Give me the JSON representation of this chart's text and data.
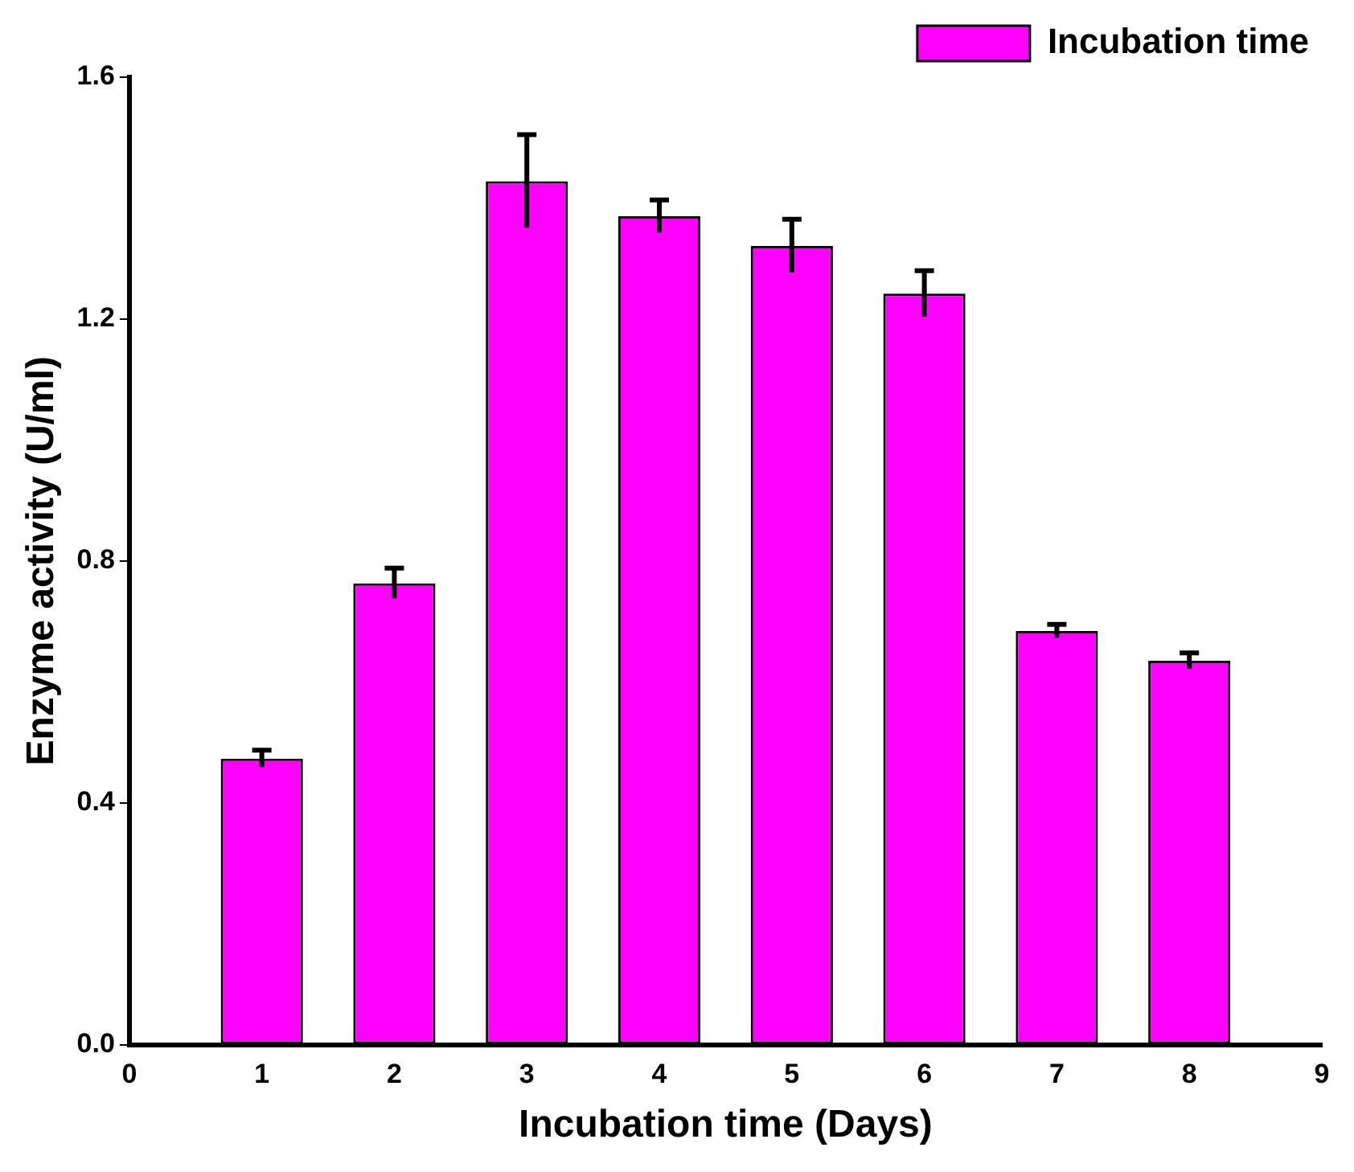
{
  "chart_data": {
    "type": "bar",
    "xlabel": "Incubation time (Days)",
    "ylabel": "Enzyme activity (U/ml)",
    "x": [
      1,
      2,
      3,
      4,
      5,
      6,
      7,
      8
    ],
    "series": [
      {
        "name": "Incubation time",
        "color": "#ff00ff",
        "values": [
          0.473,
          0.763,
          1.428,
          1.37,
          1.321,
          1.242,
          0.684,
          0.635
        ],
        "errors": [
          0.014,
          0.025,
          0.077,
          0.027,
          0.044,
          0.038,
          0.011,
          0.013
        ]
      }
    ],
    "xlim": [
      0,
      9
    ],
    "xticks": [
      0,
      1,
      2,
      3,
      4,
      5,
      6,
      7,
      8,
      9
    ],
    "ylim": [
      0,
      1.6
    ],
    "yticks": [
      {
        "value": 0,
        "label": "0.0"
      },
      {
        "value": 0.4,
        "label": "0.4"
      },
      {
        "value": 0.8,
        "label": "0.8"
      },
      {
        "value": 1.2,
        "label": "1.2"
      },
      {
        "value": 1.6,
        "label": "1.6"
      }
    ],
    "legend": "top right"
  }
}
